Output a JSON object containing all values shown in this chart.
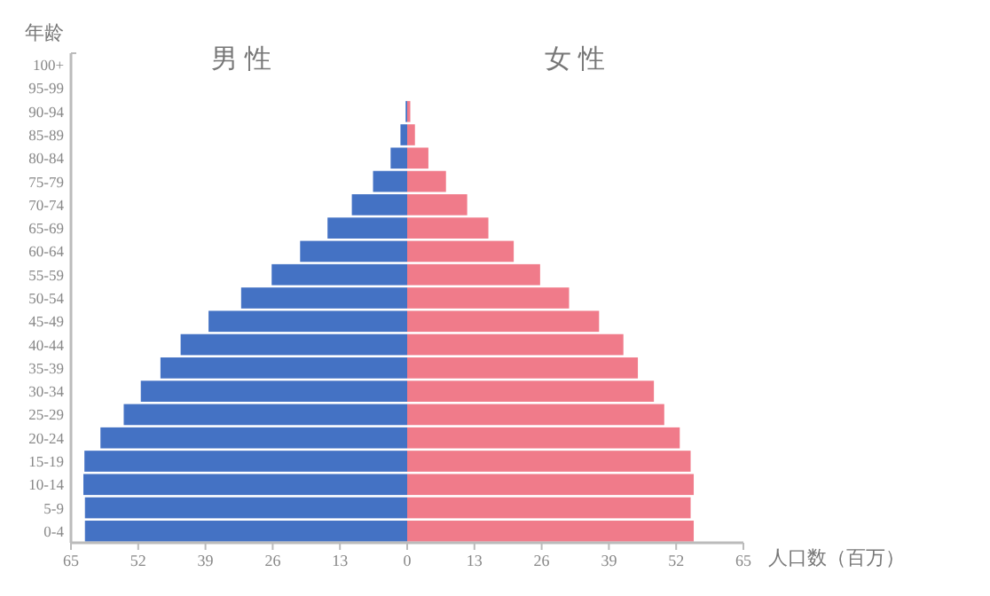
{
  "chart_data": {
    "type": "bar",
    "orientation": "horizontal",
    "ylabel": "年龄",
    "xlabel": "人口数（百万）",
    "categories": [
      "100+",
      "95-99",
      "90-94",
      "85-89",
      "80-84",
      "75-79",
      "70-74",
      "65-69",
      "60-64",
      "55-59",
      "50-54",
      "45-49",
      "40-44",
      "35-39",
      "30-34",
      "25-29",
      "20-24",
      "15-19",
      "10-14",
      "5-9",
      "0-4"
    ],
    "annotations": [
      "男性",
      "女性"
    ],
    "stacked": true,
    "series": [
      {
        "color": "#4472c4",
        "values": [
          0,
          0,
          -0.3,
          -1.3,
          -3.2,
          -6.6,
          -10.7,
          -15.4,
          -20.7,
          -26.2,
          -32.1,
          -38.4,
          -43.8,
          -47.7,
          -51.5,
          -54.8,
          -59.3,
          -62.4,
          -62.6,
          -62.3,
          -62.3
        ]
      },
      {
        "color": "#f07b8a",
        "values": [
          0,
          0,
          0.6,
          1.5,
          4.1,
          7.5,
          11.6,
          15.7,
          20.6,
          25.7,
          31.3,
          37.1,
          41.8,
          44.6,
          47.7,
          49.7,
          52.7,
          54.8,
          55.4,
          54.8,
          55.4
        ]
      }
    ],
    "xlim": [
      -65,
      65
    ],
    "xticks": [
      {
        "value": -65,
        "label": "65"
      },
      {
        "value": -52,
        "label": "52"
      },
      {
        "value": -39,
        "label": "39"
      },
      {
        "value": -26,
        "label": "26"
      },
      {
        "value": -13,
        "label": "13"
      },
      0,
      13,
      26,
      39,
      52,
      65
    ],
    "grid": false
  }
}
